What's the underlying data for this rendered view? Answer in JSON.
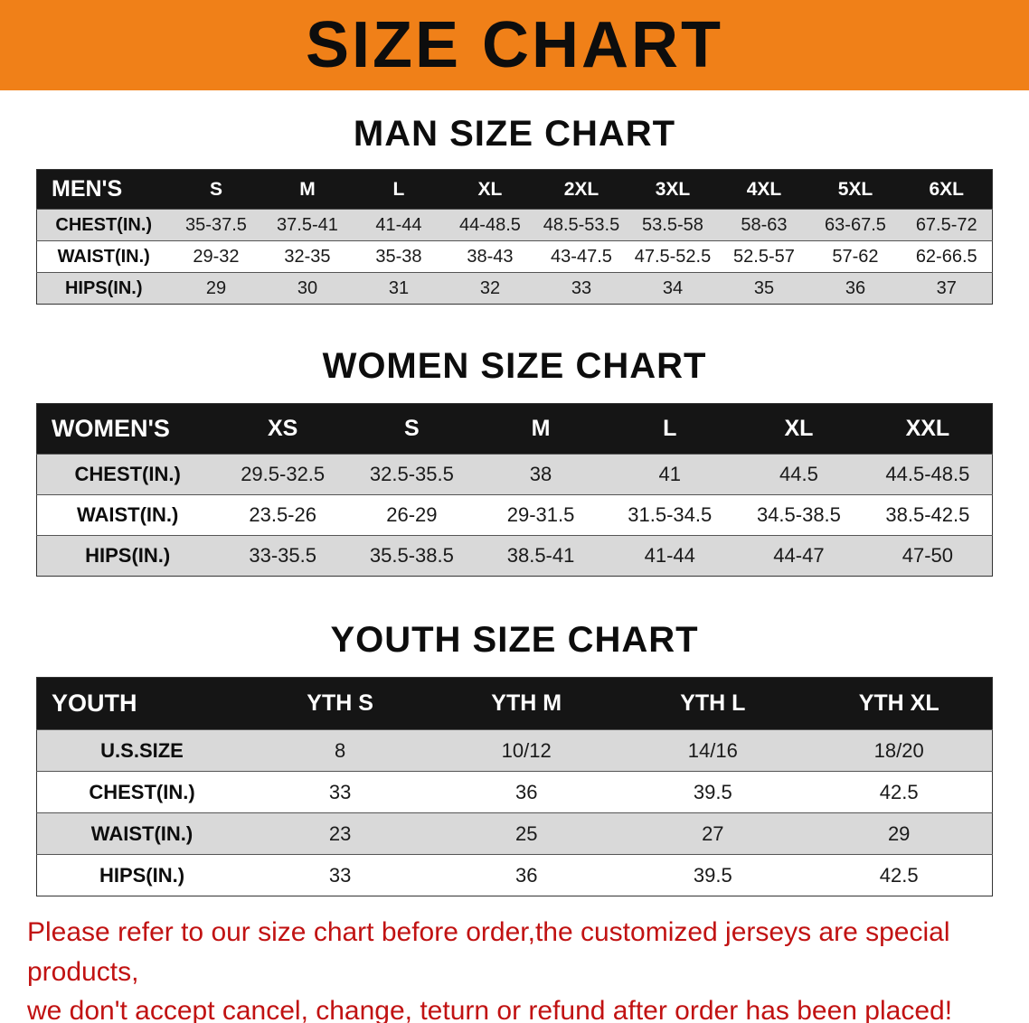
{
  "banner": {
    "title": "SIZE CHART"
  },
  "sections": {
    "men": {
      "heading": "MAN SIZE CHART",
      "table": {
        "header": [
          "MEN'S",
          "S",
          "M",
          "L",
          "XL",
          "2XL",
          "3XL",
          "4XL",
          "5XL",
          "6XL"
        ],
        "rows": [
          {
            "label": "CHEST(IN.)",
            "values": [
              "35-37.5",
              "37.5-41",
              "41-44",
              "44-48.5",
              "48.5-53.5",
              "53.5-58",
              "58-63",
              "63-67.5",
              "67.5-72"
            ]
          },
          {
            "label": "WAIST(IN.)",
            "values": [
              "29-32",
              "32-35",
              "35-38",
              "38-43",
              "43-47.5",
              "47.5-52.5",
              "52.5-57",
              "57-62",
              "62-66.5"
            ]
          },
          {
            "label": "HIPS(IN.)",
            "values": [
              "29",
              "30",
              "31",
              "32",
              "33",
              "34",
              "35",
              "36",
              "37"
            ]
          }
        ]
      }
    },
    "women": {
      "heading": "WOMEN SIZE CHART",
      "table": {
        "header": [
          "WOMEN'S",
          "XS",
          "S",
          "M",
          "L",
          "XL",
          "XXL"
        ],
        "rows": [
          {
            "label": "CHEST(IN.)",
            "values": [
              "29.5-32.5",
              "32.5-35.5",
              "38",
              "41",
              "44.5",
              "44.5-48.5"
            ]
          },
          {
            "label": "WAIST(IN.)",
            "values": [
              "23.5-26",
              "26-29",
              "29-31.5",
              "31.5-34.5",
              "34.5-38.5",
              "38.5-42.5"
            ]
          },
          {
            "label": "HIPS(IN.)",
            "values": [
              "33-35.5",
              "35.5-38.5",
              "38.5-41",
              "41-44",
              "44-47",
              "47-50"
            ]
          }
        ]
      }
    },
    "youth": {
      "heading": "YOUTH SIZE CHART",
      "table": {
        "header": [
          "YOUTH",
          "YTH S",
          "YTH M",
          "YTH L",
          "YTH XL"
        ],
        "rows": [
          {
            "label": "U.S.SIZE",
            "values": [
              "8",
              "10/12",
              "14/16",
              "18/20"
            ]
          },
          {
            "label": "CHEST(IN.)",
            "values": [
              "33",
              "36",
              "39.5",
              "42.5"
            ]
          },
          {
            "label": "WAIST(IN.)",
            "values": [
              "23",
              "25",
              "27",
              "29"
            ]
          },
          {
            "label": "HIPS(IN.)",
            "values": [
              "33",
              "36",
              "39.5",
              "42.5"
            ]
          }
        ]
      }
    }
  },
  "footer": {
    "line1": "Please refer to our size chart before order,the customized jerseys are special products,",
    "line2": "we don't accept cancel, change, teturn or refund after order has been placed!"
  },
  "colors": {
    "banner_bg": "#f08018",
    "footer_text": "#c11212",
    "header_row_bg": "#151515",
    "stripe_bg": "#d9d9d9"
  }
}
